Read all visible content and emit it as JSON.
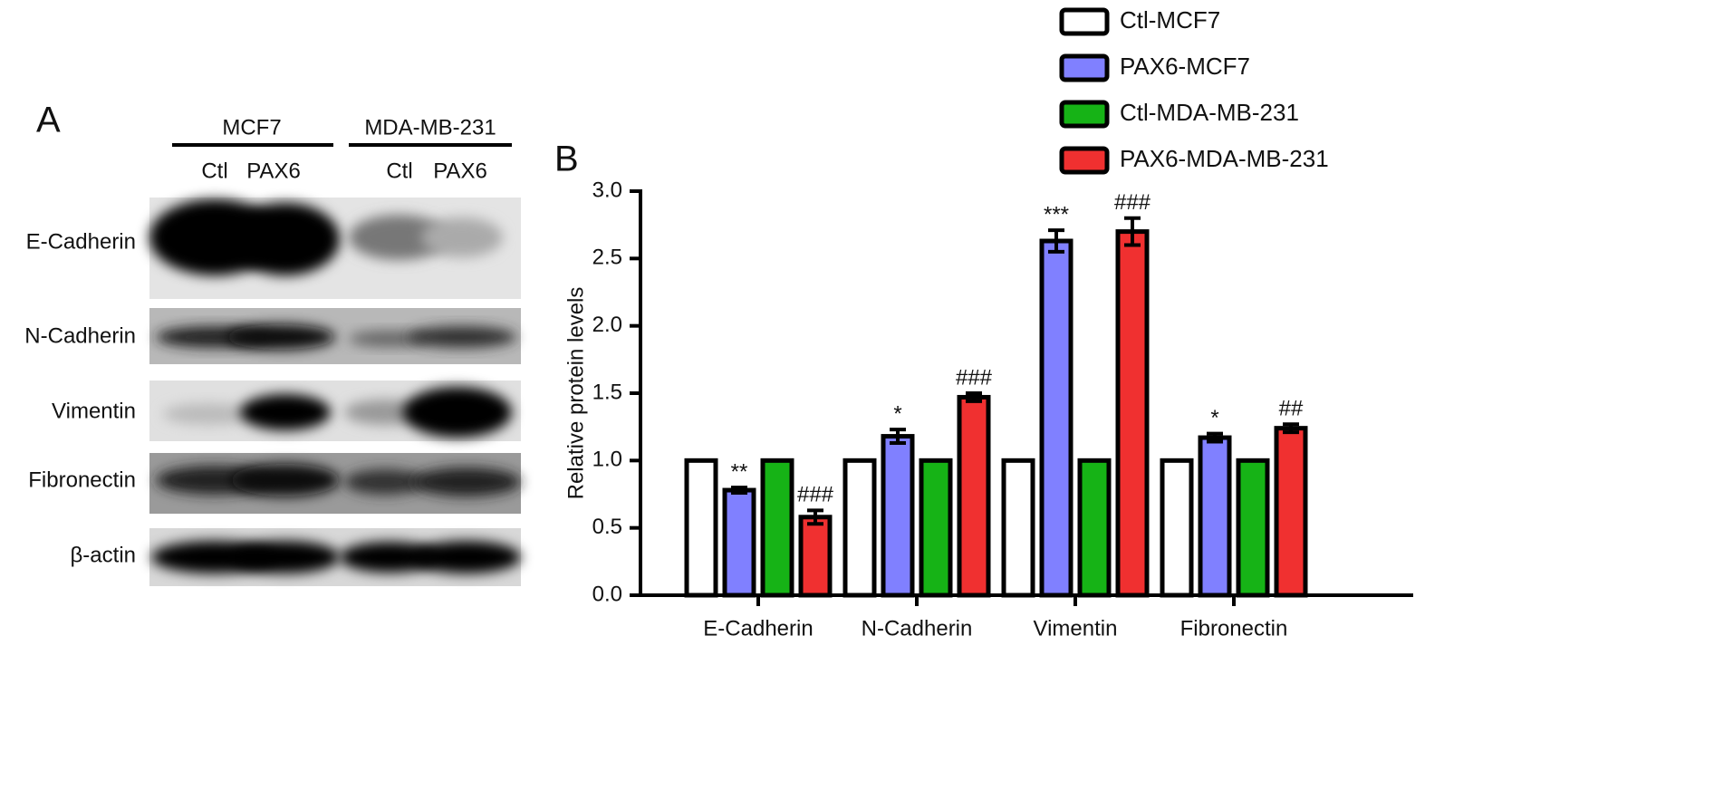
{
  "panel_a": {
    "label": "A",
    "groups": [
      "MCF7",
      "MDA-MB-231"
    ],
    "lanes": [
      "Ctl",
      "PAX6",
      "Ctl",
      "PAX6"
    ],
    "proteins": [
      "E-Cadherin",
      "N-Cadherin",
      "Vimentin",
      "Fibronectin",
      "β-actin"
    ]
  },
  "chart_data": {
    "type": "bar",
    "panel_label": "B",
    "ylabel": "Relative protein levels",
    "categories": [
      "E-Cadherin",
      "N-Cadherin",
      "Vimentin",
      "Fibronectin"
    ],
    "series": [
      {
        "name": "Ctl-MCF7",
        "color": "#ffffff",
        "values": [
          1,
          1,
          1,
          1
        ]
      },
      {
        "name": "PAX6-MCF7",
        "color": "#8080ff",
        "values": [
          0.78,
          1.18,
          2.63,
          1.17
        ],
        "errors": [
          0.02,
          0.05,
          0.08,
          0.03
        ],
        "significance": [
          "**",
          "*",
          "***",
          "*"
        ]
      },
      {
        "name": "Ctl-MDA-MB-231",
        "color": "#16b316",
        "values": [
          1,
          1,
          1,
          1
        ]
      },
      {
        "name": "PAX6-MDA-MB-231",
        "color": "#f03030",
        "values": [
          0.58,
          1.47,
          2.7,
          1.24
        ],
        "errors": [
          0.05,
          0.03,
          0.1,
          0.03
        ],
        "significance": [
          "###",
          "###",
          "###",
          "##"
        ]
      }
    ],
    "ylim": [
      0,
      3
    ],
    "yticks": [
      {
        "value": 0,
        "label": "0.0"
      },
      0.5,
      {
        "value": 1,
        "label": "1.0"
      },
      1.5,
      {
        "value": 2,
        "label": "2.0"
      },
      2.5,
      {
        "value": 3,
        "label": "3.0"
      }
    ],
    "legend": "top-right"
  }
}
